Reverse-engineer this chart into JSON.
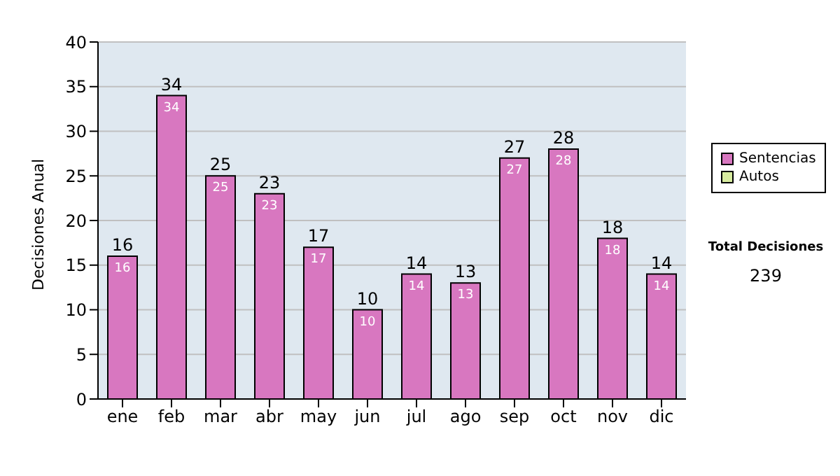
{
  "chart_data": {
    "type": "bar",
    "ylabel": "Decisiones Anual",
    "categories": [
      "ene",
      "feb",
      "mar",
      "abr",
      "may",
      "jun",
      "jul",
      "ago",
      "sep",
      "oct",
      "nov",
      "dic"
    ],
    "series": [
      {
        "name": "Sentencias",
        "color": "#d877c0",
        "values": [
          16,
          34,
          25,
          23,
          17,
          10,
          14,
          13,
          27,
          28,
          18,
          14
        ],
        "value_labels": [
          "16",
          "34",
          "25",
          "23",
          "17",
          "10",
          "14",
          "13",
          "27",
          "28",
          "18",
          "14"
        ]
      },
      {
        "name": "Autos",
        "color": "#d8eca0",
        "values": [
          0,
          0,
          0,
          0,
          0,
          0,
          0,
          0,
          0,
          0,
          0,
          0
        ]
      }
    ],
    "stacked": true,
    "totals": [
      "16",
      "34",
      "25",
      "23",
      "17",
      "10",
      "14",
      "13",
      "27",
      "28",
      "18",
      "14"
    ],
    "ylim": [
      0,
      40
    ],
    "yticks": [
      0,
      5,
      10,
      15,
      20,
      25,
      30,
      35,
      40
    ],
    "grid": "y",
    "legend": "right",
    "annotations": [
      "Total Decisiones",
      "239"
    ]
  }
}
